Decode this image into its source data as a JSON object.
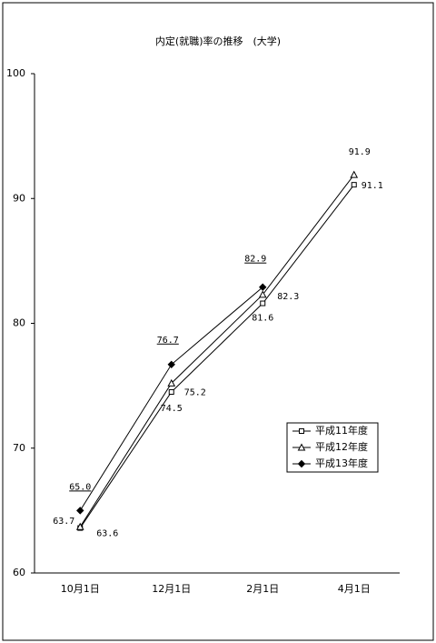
{
  "chart_data": {
    "type": "line",
    "title": "内定(就職)率の推移　(大学)",
    "categories": [
      "10月1日",
      "12月1日",
      "2月1日",
      "4月1日"
    ],
    "ylim": [
      60,
      100
    ],
    "yticks": [
      60,
      70,
      80,
      90,
      100
    ],
    "grid": false,
    "series": [
      {
        "name": "平成11年度",
        "color": "#000000",
        "marker": "square",
        "values": [
          63.6,
          74.5,
          81.6,
          91.1
        ],
        "value_labels": [
          "63.6",
          "74.5",
          "81.6",
          "91.1"
        ]
      },
      {
        "name": "平成12年度",
        "color": "#000000",
        "marker": "triangle",
        "values": [
          63.7,
          75.2,
          82.3,
          91.9
        ],
        "value_labels": [
          "63.7",
          "75.2",
          "82.3",
          "91.9"
        ]
      },
      {
        "name": "平成13年度",
        "color": "#000000",
        "marker": "diamond",
        "values": [
          65.0,
          76.7,
          82.9,
          null
        ],
        "value_labels": [
          "65.0",
          "76.7",
          "82.9",
          null
        ]
      }
    ]
  }
}
